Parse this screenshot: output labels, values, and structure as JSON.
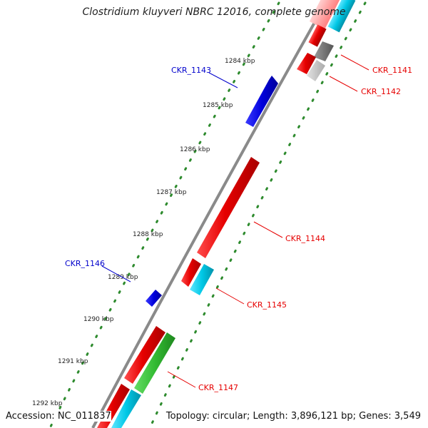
{
  "title": "Clostridium kluyveri NBRC 12016, complete genome",
  "footer": {
    "accession": "Accession: NC_011837",
    "summary": "Topology: circular; Length: 3,896,121 bp; Genes: 3,549"
  },
  "ticks": [
    "1284 kbp",
    "1285 kbp",
    "1286 kbp",
    "1287 kbp",
    "1288 kbp",
    "1289 kbp",
    "1290 kbp",
    "1291 kbp",
    "1292 kbp"
  ],
  "gene_labels": {
    "CKR_1141": "CKR_1141",
    "CKR_1142": "CKR_1142",
    "CKR_1143": "CKR_1143",
    "CKR_1144": "CKR_1144",
    "CKR_1145": "CKR_1145",
    "CKR_1146": "CKR_1146",
    "CKR_1147": "CKR_1147"
  },
  "colors": {
    "backbone": "#8a8a8a",
    "tick_dots": "#2e8b2e",
    "forward_gene": "#e60000",
    "reverse_gene": "#0000dd",
    "cyan_feature": "#00c8e6",
    "green_feature": "#33bb33",
    "gray_feature": "#707070",
    "label_forward": "#e60000",
    "label_reverse": "#0000cc"
  }
}
